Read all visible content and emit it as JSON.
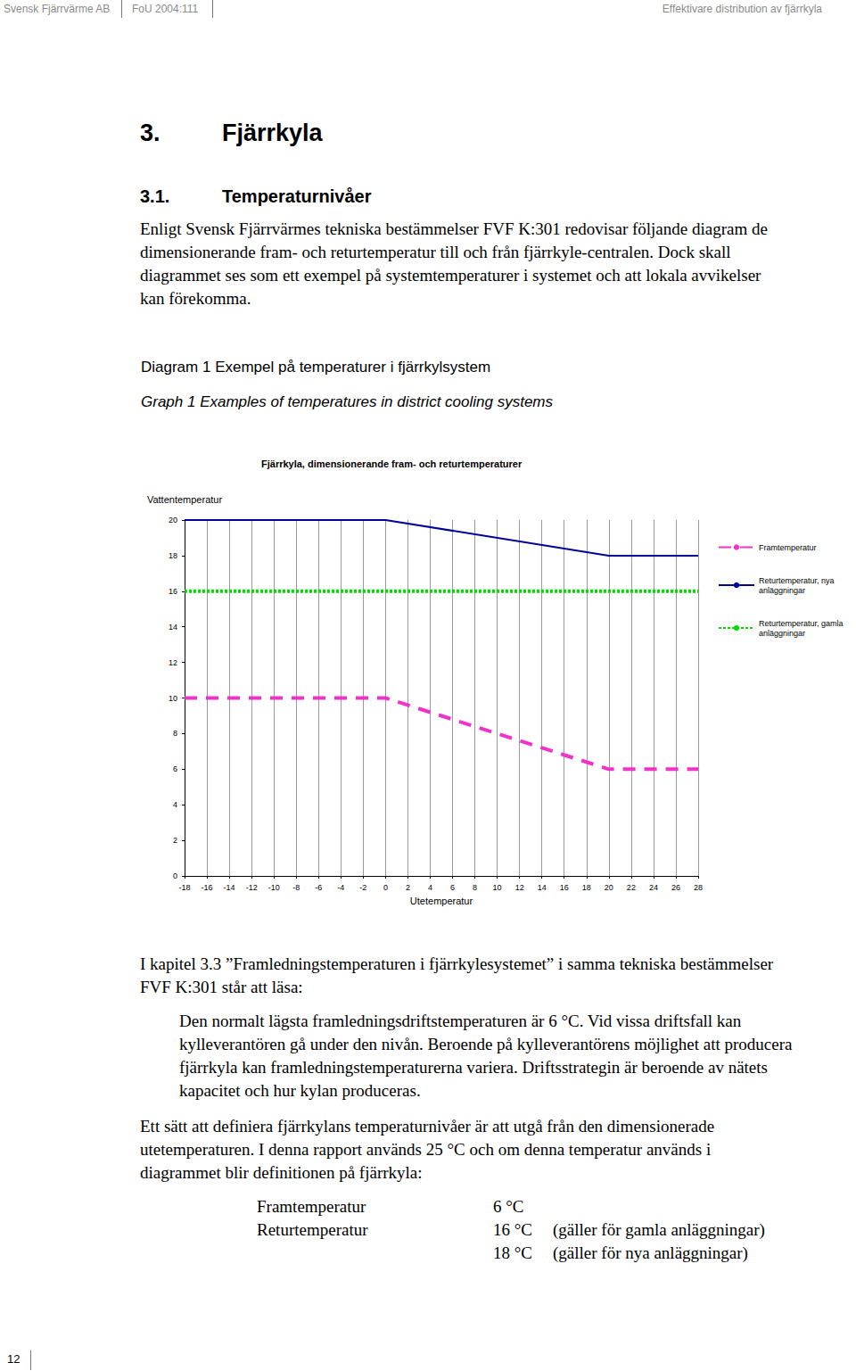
{
  "header": {
    "left": "Svensk Fjärrvärme AB",
    "center": "FoU 2004:111",
    "right": "Effektivare distribution av fjärrkyla"
  },
  "heading": {
    "number": "3.",
    "title": "Fjärrkyla"
  },
  "subheading": {
    "number": "3.1.",
    "title": "Temperaturnivåer"
  },
  "paragraph_1": "Enligt Svensk Fjärrvärmes tekniska bestämmelser FVF K:301 redovisar följande diagram de dimensionerande fram- och returtemperatur till och från fjärrkyle-centralen. Dock skall diagrammet ses som ett exempel på systemtemperaturer i systemet och att lokala avvikelser kan förekomma.",
  "diagram_caption": "Diagram 1 Exempel på temperaturer i fjärrkylsystem",
  "graph_caption": "Graph 1 Examples of temperatures in district cooling systems",
  "chart_data": {
    "type": "line",
    "title": "Fjärrkyla, dimensionerande fram- och returtemperaturer",
    "x_label": "Utetemperatur",
    "y_label": "Vattentemperatur",
    "x": [
      -18,
      0,
      20,
      28
    ],
    "series": [
      {
        "name": "Framtemperatur",
        "color": "#f032c8",
        "line_style": "dashed",
        "values": [
          10,
          10,
          6,
          6
        ]
      },
      {
        "name": "Returtemperatur, nya anläggningar",
        "color": "#00009c",
        "line_style": "solid",
        "values": [
          20,
          20,
          18,
          18
        ]
      },
      {
        "name": "Returtemperatur, gamla anläggningar",
        "color": "#00dd00",
        "line_style": "dotted",
        "values": [
          16,
          16,
          16,
          16
        ]
      }
    ],
    "xlim": [
      -18,
      28
    ],
    "xticks": [
      -18,
      -16,
      -14,
      -12,
      -10,
      -8,
      -6,
      -4,
      -2,
      0,
      2,
      4,
      6,
      8,
      10,
      12,
      14,
      16,
      18,
      20,
      22,
      24,
      26,
      28
    ],
    "ylim": [
      0,
      20
    ],
    "yticks": [
      0,
      2,
      4,
      6,
      8,
      10,
      12,
      14,
      16,
      18,
      20
    ],
    "grid": "x",
    "legend": "right"
  },
  "paragraph_2": "I kapitel 3.3 ”Framledningstemperaturen i fjärrkylesystemet” i samma tekniska bestämmelser FVF K:301 står att läsa:",
  "quote": "Den normalt lägsta framledningsdriftstemperaturen är 6 °C. Vid vissa driftsfall kan kylleverantören gå under den nivån. Beroende på kylleverantörens möjlighet att producera fjärrkyla kan framledningstemperaturerna variera. Driftsstrategin är beroende av nätets kapacitet och hur kylan produceras.",
  "paragraph_3": "Ett sätt att definiera fjärrkylans temperaturnivåer är att utgå från den dimensionerade utetemperaturen. I denna rapport används 25 °C och om denna temperatur används i diagrammet blir definitionen på fjärrkyla:",
  "definition": [
    {
      "label": "Framtemperatur",
      "value": "6 °C"
    },
    {
      "label": "Returtemperatur",
      "value": "16 °C",
      "note": "(gäller för gamla anläggningar)"
    },
    {
      "value": "18 °C",
      "note": "(gäller för nya anläggningar)"
    }
  ],
  "page_number": "12"
}
